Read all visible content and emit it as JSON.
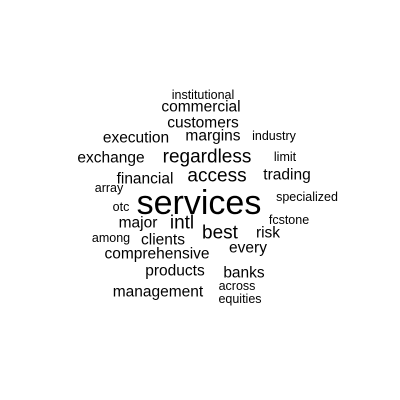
{
  "word_cloud": {
    "text_color": "#000000",
    "background_color": "#ffffff",
    "words": [
      {
        "text": "institutional",
        "weight": 1
      },
      {
        "text": "commercial",
        "weight": 2
      },
      {
        "text": "customers",
        "weight": 2
      },
      {
        "text": "execution",
        "weight": 2
      },
      {
        "text": "margins",
        "weight": 2
      },
      {
        "text": "industry",
        "weight": 1
      },
      {
        "text": "exchange",
        "weight": 2
      },
      {
        "text": "regardless",
        "weight": 3
      },
      {
        "text": "limit",
        "weight": 1
      },
      {
        "text": "financial",
        "weight": 2
      },
      {
        "text": "access",
        "weight": 3
      },
      {
        "text": "trading",
        "weight": 2
      },
      {
        "text": "array",
        "weight": 1
      },
      {
        "text": "services",
        "weight": 6
      },
      {
        "text": "specialized",
        "weight": 1
      },
      {
        "text": "otc",
        "weight": 1
      },
      {
        "text": "fcstone",
        "weight": 1
      },
      {
        "text": "major",
        "weight": 2
      },
      {
        "text": "intl",
        "weight": 3
      },
      {
        "text": "best",
        "weight": 3
      },
      {
        "text": "risk",
        "weight": 2
      },
      {
        "text": "among",
        "weight": 1
      },
      {
        "text": "clients",
        "weight": 2
      },
      {
        "text": "every",
        "weight": 2
      },
      {
        "text": "comprehensive",
        "weight": 2
      },
      {
        "text": "products",
        "weight": 2
      },
      {
        "text": "banks",
        "weight": 2
      },
      {
        "text": "management",
        "weight": 2
      },
      {
        "text": "across",
        "weight": 1
      },
      {
        "text": "equities",
        "weight": 1
      }
    ]
  }
}
